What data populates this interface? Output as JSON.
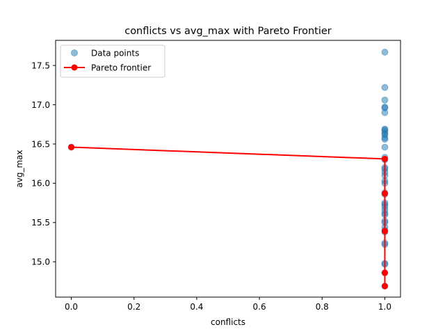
{
  "chart_data": {
    "type": "scatter",
    "title": "conflicts vs avg_max with Pareto Frontier",
    "xlabel": "conflicts",
    "ylabel": "avg_max",
    "xlim": [
      -0.05,
      1.05
    ],
    "ylim": [
      14.55,
      17.82
    ],
    "xticks": [
      0.0,
      0.2,
      0.4,
      0.6,
      0.8,
      1.0
    ],
    "xtick_labels": [
      "0.0",
      "0.2",
      "0.4",
      "0.6",
      "0.8",
      "1.0"
    ],
    "yticks": [
      15.0,
      15.5,
      16.0,
      16.5,
      17.0,
      17.5
    ],
    "ytick_labels": [
      "15.0",
      "15.5",
      "16.0",
      "16.5",
      "17.0",
      "17.5"
    ],
    "grid": false,
    "legend": {
      "position": "top-left",
      "entries": [
        {
          "label": "Data points",
          "kind": "scatter",
          "color": "#1f77b4"
        },
        {
          "label": "Pareto frontier",
          "kind": "line",
          "color": "#ff0000"
        }
      ]
    },
    "series": [
      {
        "name": "Data points",
        "kind": "scatter",
        "color": "#1f77b4",
        "opacity": 0.5,
        "points": [
          [
            1.0,
            17.67
          ],
          [
            1.0,
            17.22
          ],
          [
            1.0,
            17.06
          ],
          [
            1.0,
            16.97
          ],
          [
            1.0,
            16.96
          ],
          [
            1.0,
            16.9
          ],
          [
            1.0,
            16.69
          ],
          [
            1.0,
            16.68
          ],
          [
            1.0,
            16.66
          ],
          [
            1.0,
            16.63
          ],
          [
            1.0,
            16.62
          ],
          [
            1.0,
            16.58
          ],
          [
            1.0,
            16.56
          ],
          [
            1.0,
            16.46
          ],
          [
            1.0,
            16.33
          ],
          [
            1.0,
            16.3
          ],
          [
            1.0,
            16.2
          ],
          [
            1.0,
            16.18
          ],
          [
            1.0,
            16.14
          ],
          [
            1.0,
            16.1
          ],
          [
            1.0,
            16.03
          ],
          [
            1.0,
            16.0
          ],
          [
            1.0,
            15.88
          ],
          [
            1.0,
            15.86
          ],
          [
            1.0,
            15.75
          ],
          [
            1.0,
            15.73
          ],
          [
            1.0,
            15.7
          ],
          [
            1.0,
            15.66
          ],
          [
            1.0,
            15.62
          ],
          [
            1.0,
            15.6
          ],
          [
            1.0,
            15.52
          ],
          [
            1.0,
            15.5
          ],
          [
            1.0,
            15.44
          ],
          [
            1.0,
            15.4
          ],
          [
            1.0,
            15.38
          ],
          [
            1.0,
            15.24
          ],
          [
            1.0,
            15.22
          ],
          [
            1.0,
            14.98
          ],
          [
            1.0,
            14.97
          ],
          [
            1.0,
            14.86
          ],
          [
            1.0,
            14.69
          ],
          [
            0.0,
            16.46
          ]
        ]
      },
      {
        "name": "Pareto frontier",
        "kind": "line",
        "color": "#ff0000",
        "points": [
          [
            0.0,
            16.46
          ],
          [
            1.0,
            16.31
          ],
          [
            1.0,
            15.87
          ],
          [
            1.0,
            15.39
          ],
          [
            1.0,
            14.86
          ],
          [
            1.0,
            14.69
          ]
        ]
      }
    ]
  }
}
